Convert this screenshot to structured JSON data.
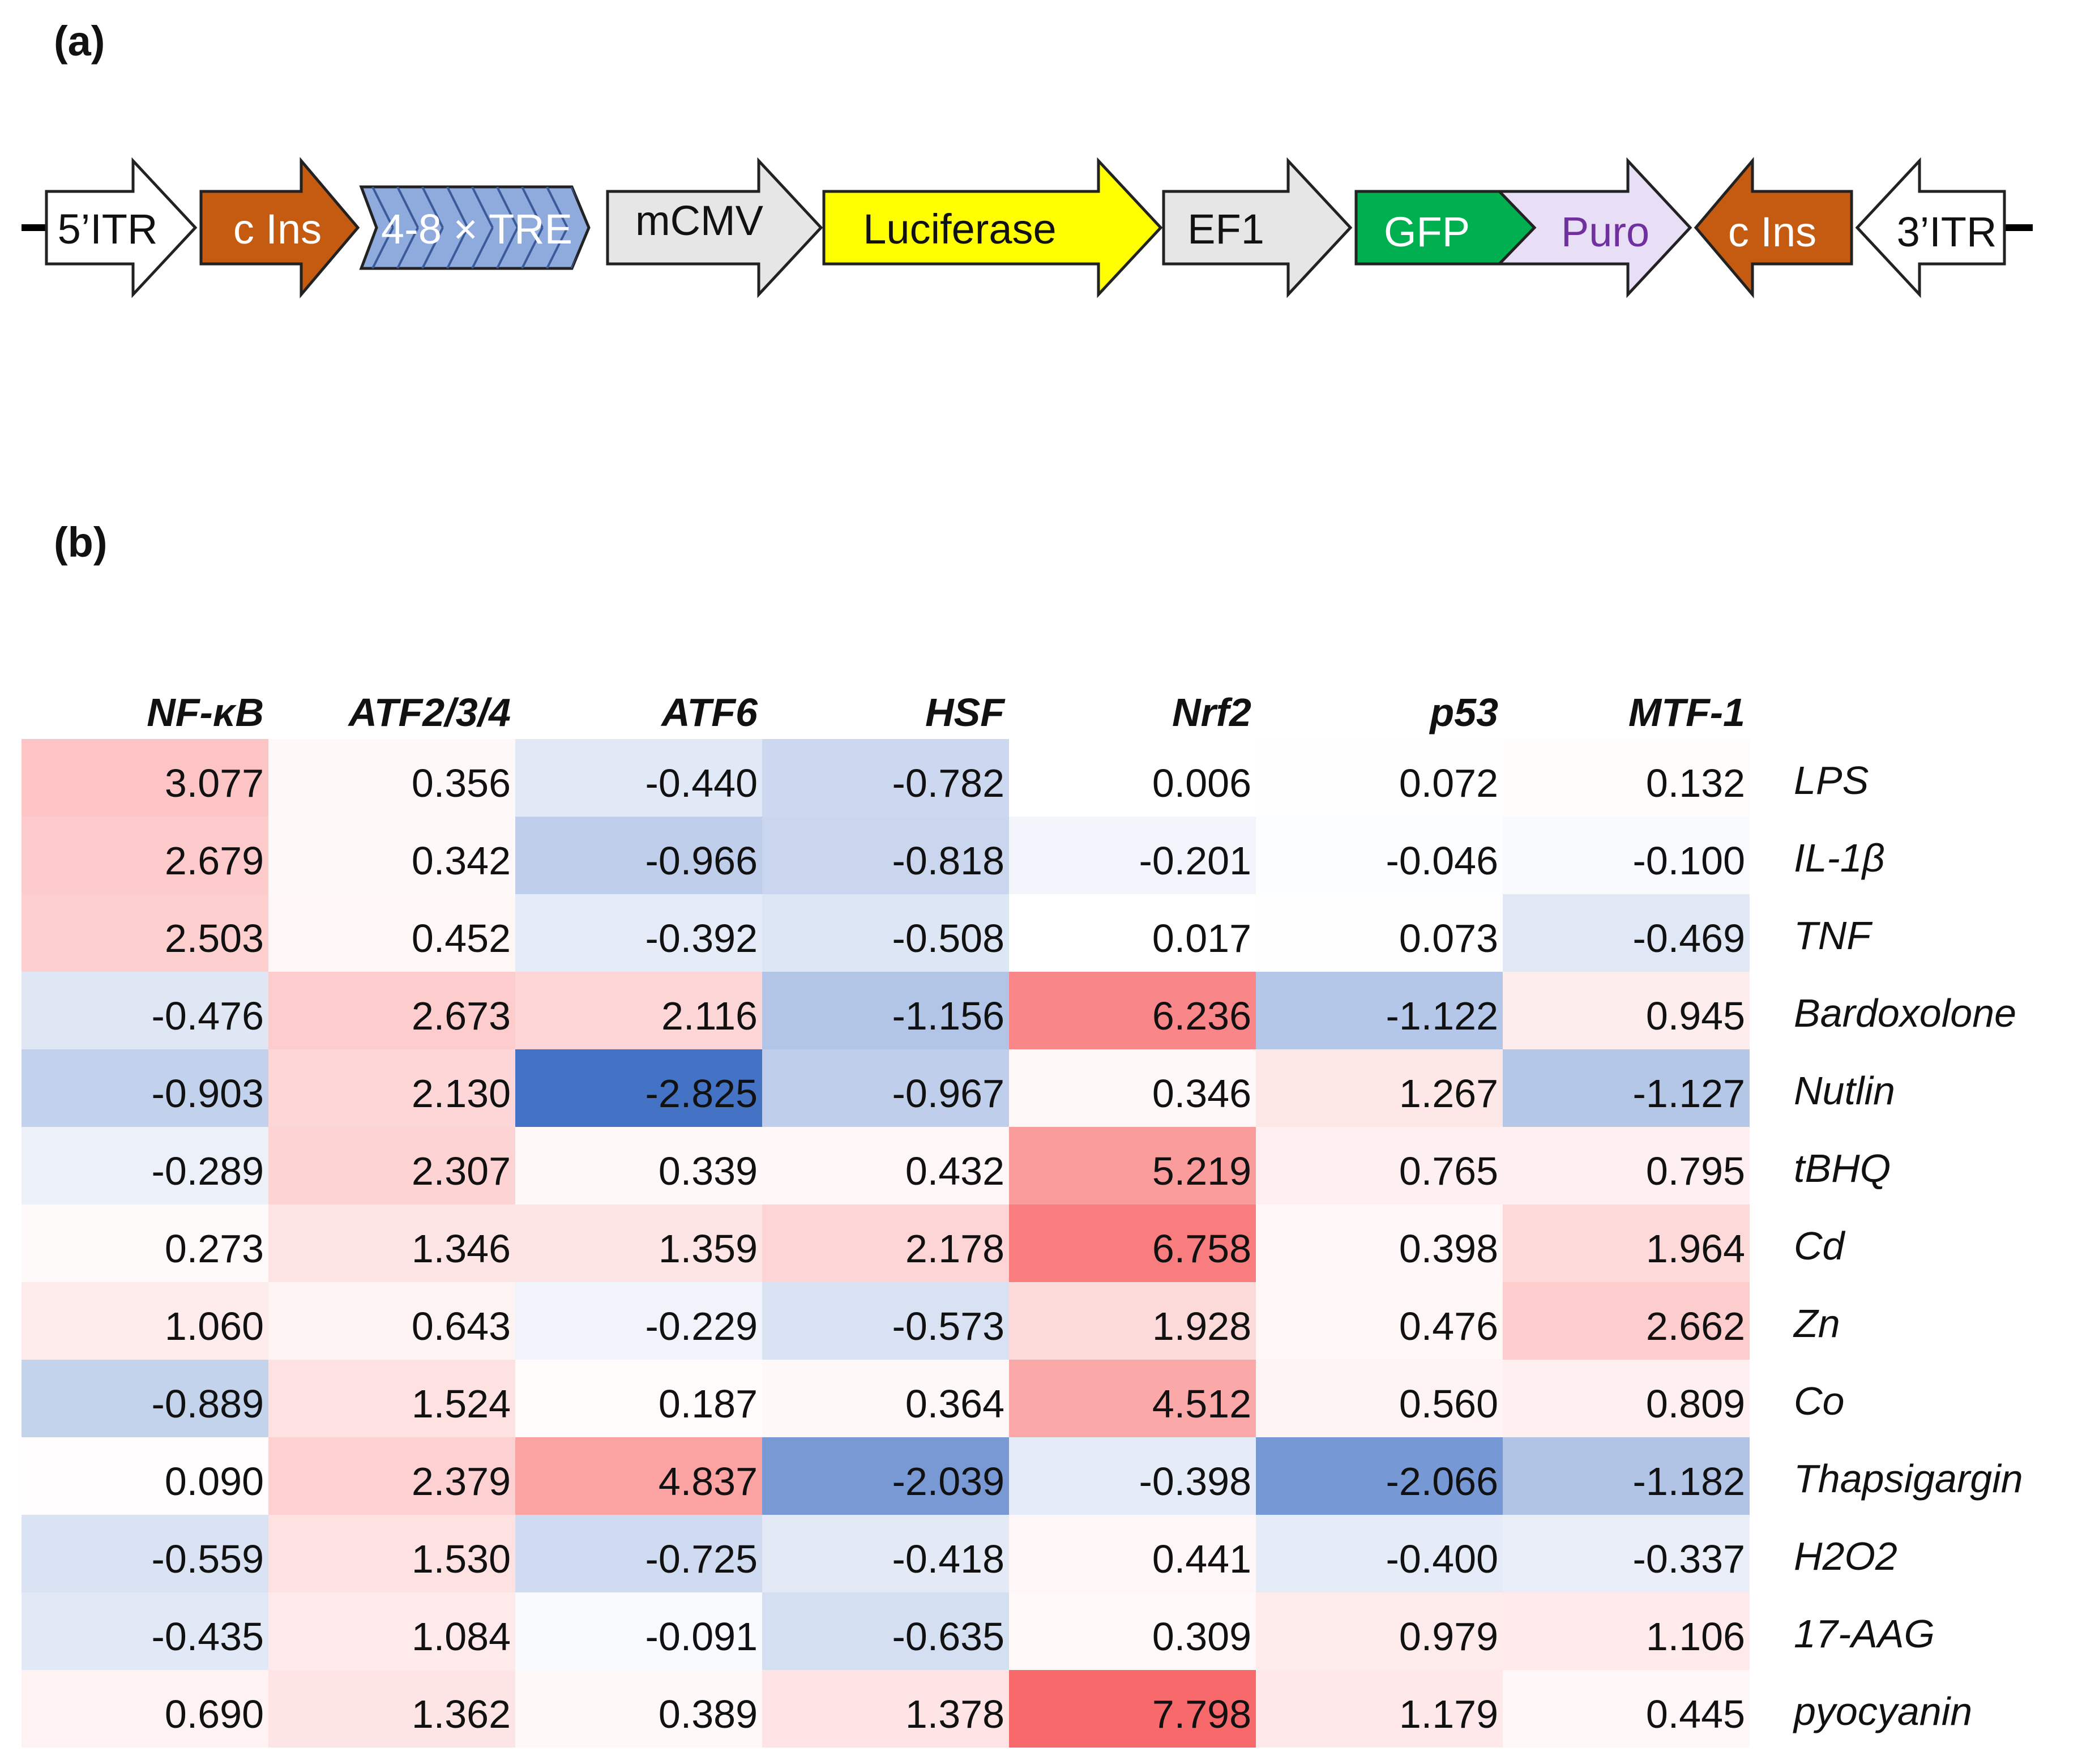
{
  "panel_a": {
    "label": "(a)",
    "elements": [
      {
        "label": "5’ITR",
        "fill": "#ffffff",
        "text_color": "#111111",
        "shape": "arrow-right",
        "name": "itr-5-element"
      },
      {
        "label": "c Ins",
        "fill": "#c55a11",
        "text_color": "#ffffff",
        "shape": "arrow-right",
        "name": "c-ins-left-element"
      },
      {
        "label": "4-8 × TRE",
        "fill": "#8faadc",
        "text_color": "#ffffff",
        "shape": "hatched-arrow",
        "name": "tre-element"
      },
      {
        "label": "mCMV",
        "fill": "#e7e6e6",
        "text_color": "#111111",
        "shape": "arrow-right",
        "name": "mcmv-element"
      },
      {
        "label": "Luciferase",
        "fill": "#ffff00",
        "text_color": "#111111",
        "shape": "arrow-right",
        "name": "luciferase-element"
      },
      {
        "label": "EF1",
        "fill": "#e7e6e6",
        "text_color": "#111111",
        "shape": "arrow-right",
        "name": "ef1-element"
      },
      {
        "label": "GFP",
        "fill": "#00b050",
        "text_color": "#ffffff",
        "shape": "arrow-right",
        "name": "gfp-element"
      },
      {
        "label": "Puro",
        "fill": "#e8def5",
        "text_color": "#7030a0",
        "shape": "arrow-right",
        "name": "puro-element"
      },
      {
        "label": "c Ins",
        "fill": "#c55a11",
        "text_color": "#ffffff",
        "shape": "arrow-left",
        "name": "c-ins-right-element"
      },
      {
        "label": "3’ITR",
        "fill": "#ffffff",
        "text_color": "#111111",
        "shape": "arrow-left",
        "name": "itr-3-element"
      }
    ]
  },
  "panel_b": {
    "label": "(b)",
    "chart_data": {
      "type": "heatmap",
      "columns": [
        "NF-κB",
        "ATF2/3/4",
        "ATF6",
        "HSF",
        "Nrf2",
        "p53",
        "MTF-1"
      ],
      "rows": [
        "LPS",
        "IL-1β",
        "TNF",
        "Bardoxolone",
        "Nutlin",
        "tBHQ",
        "Cd",
        "Zn",
        "Co",
        "Thapsigargin",
        "H2O2",
        "17-AAG",
        "pyocyanin"
      ],
      "values": [
        [
          "3.077",
          "0.356",
          "-0.440",
          "-0.782",
          "0.006",
          "0.072",
          "0.132"
        ],
        [
          "2.679",
          "0.342",
          "-0.966",
          "-0.818",
          "-0.201",
          "-0.046",
          "-0.100"
        ],
        [
          "2.503",
          "0.452",
          "-0.392",
          "-0.508",
          "0.017",
          "0.073",
          "-0.469"
        ],
        [
          "-0.476",
          "2.673",
          "2.116",
          "-1.156",
          "6.236",
          "-1.122",
          "0.945"
        ],
        [
          "-0.903",
          "2.130",
          "-2.825",
          "-0.967",
          "0.346",
          "1.267",
          "-1.127"
        ],
        [
          "-0.289",
          "2.307",
          "0.339",
          "0.432",
          "5.219",
          "0.765",
          "0.795"
        ],
        [
          "0.273",
          "1.346",
          "1.359",
          "2.178",
          "6.758",
          "0.398",
          "1.964"
        ],
        [
          "1.060",
          "0.643",
          "-0.229",
          "-0.573",
          "1.928",
          "0.476",
          "2.662"
        ],
        [
          "-0.889",
          "1.524",
          "0.187",
          "0.364",
          "4.512",
          "0.560",
          "0.809"
        ],
        [
          "0.090",
          "2.379",
          "4.837",
          "-2.039",
          "-0.398",
          "-2.066",
          "-1.182"
        ],
        [
          "-0.559",
          "1.530",
          "-0.725",
          "-0.418",
          "0.441",
          "-0.400",
          "-0.337"
        ],
        [
          "-0.435",
          "1.084",
          "-0.091",
          "-0.635",
          "0.309",
          "0.979",
          "1.106"
        ],
        [
          "0.690",
          "1.362",
          "0.389",
          "1.378",
          "7.798",
          "1.179",
          "0.445"
        ]
      ],
      "color_scale": {
        "negative": "#4472c4",
        "neutral": "#ffffff",
        "positive": "#f8696b",
        "neg_extreme": -2.825,
        "pos_extreme": 7.798
      }
    }
  }
}
